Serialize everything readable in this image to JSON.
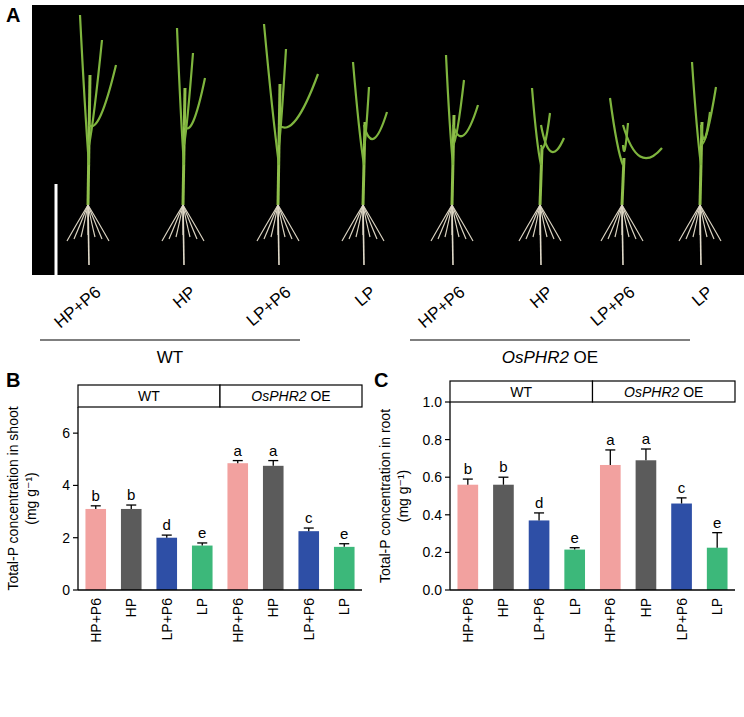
{
  "photo_panel": {
    "panel_label": "A",
    "plants": [
      "HP+P6",
      "HP",
      "LP+P6",
      "LP",
      "HP+P6",
      "HP",
      "LP+P6",
      "LP"
    ],
    "groups": [
      "WT",
      "OsPHR2 OE"
    ]
  },
  "chart_data": [
    {
      "type": "bar",
      "panel_label": "B",
      "y_label": [
        "Total-P concentration in shoot",
        "(mg g⁻¹)"
      ],
      "groups": [
        "WT",
        "OsPHR2 OE"
      ],
      "categories": [
        "HP+P6",
        "HP",
        "LP+P6",
        "LP",
        "HP+P6",
        "HP",
        "LP+P6",
        "LP"
      ],
      "values": [
        3.1,
        3.1,
        2.0,
        1.7,
        4.85,
        4.75,
        2.25,
        1.65
      ],
      "errors": [
        0.12,
        0.15,
        0.1,
        0.1,
        0.1,
        0.2,
        0.12,
        0.12
      ],
      "letters": [
        "b",
        "b",
        "d",
        "e",
        "a",
        "a",
        "c",
        "e"
      ],
      "colors": [
        "#f2a19f",
        "#5b5b5b",
        "#2e4fa6",
        "#3cb87a",
        "#f2a19f",
        "#5b5b5b",
        "#2e4fa6",
        "#3cb87a"
      ],
      "ylim": [
        0,
        7
      ],
      "yticks": [
        0,
        2,
        4,
        6
      ],
      "grid": false
    },
    {
      "type": "bar",
      "panel_label": "C",
      "y_label": [
        "Total-P concentration in root",
        "(mg g⁻¹)"
      ],
      "groups": [
        "WT",
        "OsPHR2 OE"
      ],
      "categories": [
        "HP+P6",
        "HP",
        "LP+P6",
        "LP",
        "HP+P6",
        "HP",
        "LP+P6",
        "LP"
      ],
      "values": [
        0.56,
        0.56,
        0.37,
        0.215,
        0.665,
        0.69,
        0.46,
        0.225
      ],
      "errors": [
        0.03,
        0.04,
        0.04,
        0.01,
        0.08,
        0.06,
        0.03,
        0.08
      ],
      "letters": [
        "b",
        "b",
        "d",
        "e",
        "a",
        "a",
        "c",
        "e"
      ],
      "colors": [
        "#f2a19f",
        "#5b5b5b",
        "#2e4fa6",
        "#3cb87a",
        "#f2a19f",
        "#5b5b5b",
        "#2e4fa6",
        "#3cb87a"
      ],
      "ylim": [
        0,
        1.0
      ],
      "yticks": [
        {
          "value": 0,
          "label": "0.0"
        },
        0.2,
        0.4,
        0.6,
        0.8,
        {
          "value": 1.0,
          "label": "1.0"
        }
      ],
      "grid": false
    }
  ]
}
